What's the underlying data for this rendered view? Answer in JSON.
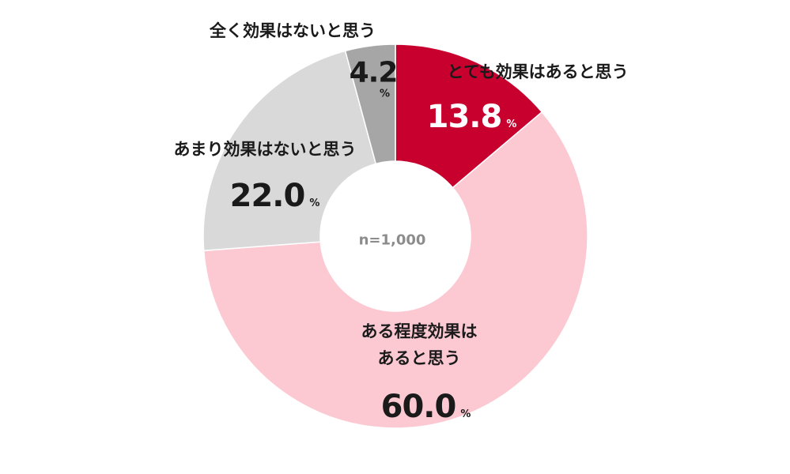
{
  "chart_data": {
    "type": "donut",
    "categories": [
      "とても効果はあると思う",
      "ある程度効果はあると思う",
      "あまり効果はないと思う",
      "全く効果はないと思う"
    ],
    "values": [
      13.8,
      60.0,
      22.0,
      4.2
    ],
    "value_labels": [
      "13.8",
      "60.0",
      "22.0",
      "4.2"
    ],
    "unit": "%",
    "colors": [
      "#c8002e",
      "#fcc9d3",
      "#d9d9d9",
      "#a6a6a6"
    ],
    "center_label": "n=1,000"
  }
}
